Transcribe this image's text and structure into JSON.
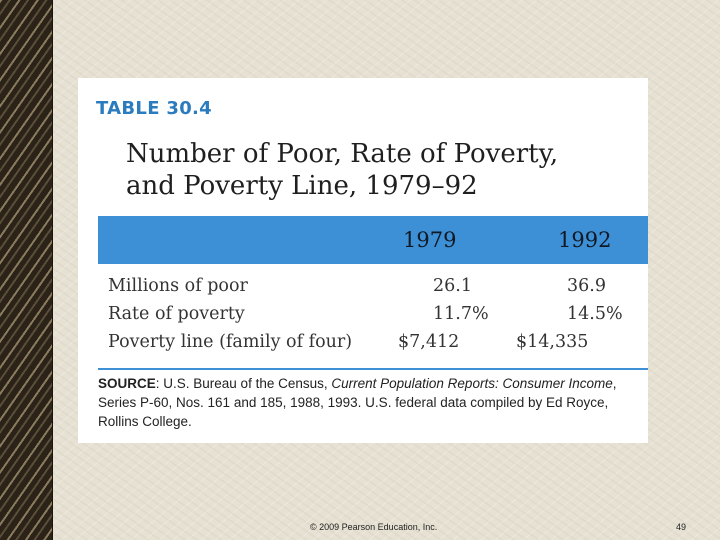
{
  "table": {
    "tag": "TABLE 30.4",
    "title_line1": "Number of Poor, Rate of Poverty,",
    "title_line2": "and Poverty Line, 1979–92",
    "col_headers": [
      "1979",
      "1992"
    ],
    "rows": [
      {
        "label": "Millions of poor",
        "v1979": "26.1",
        "v1992": "36.9"
      },
      {
        "label": "Rate of poverty",
        "v1979": "11.7%",
        "v1992": "14.5%"
      },
      {
        "label": "Poverty line (family of four)",
        "v1979": "$7,412",
        "v1992": "$14,335"
      }
    ],
    "source": {
      "label": "SOURCE",
      "sep": ": U.S. Bureau of the Census, ",
      "publication": "Current Population Reports: Consumer Income",
      "rest": ", Series P-60, Nos. 161 and 185, 1988, 1993. U.S. federal data compiled by Ed Royce, Rollins College."
    }
  },
  "footer": {
    "copyright": "© 2009 Pearson Education, Inc.",
    "page_number": "49"
  },
  "colors": {
    "accent_blue": "#3d8fd6",
    "tag_blue": "#2b7bbf"
  }
}
